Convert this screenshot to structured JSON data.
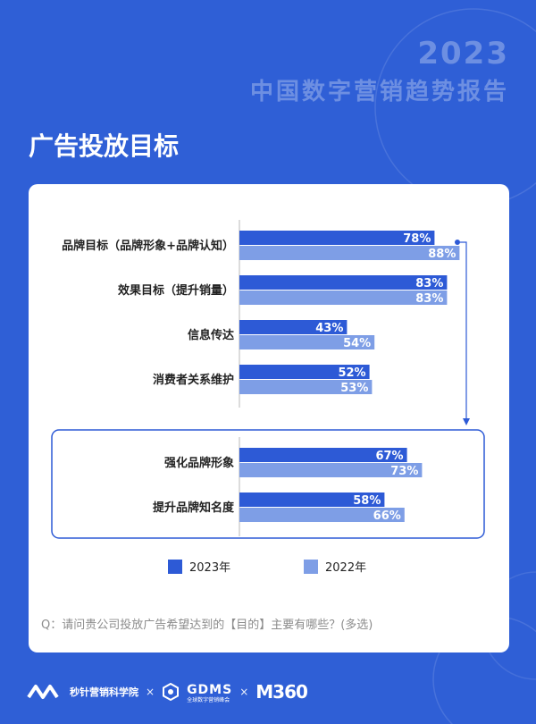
{
  "header": {
    "year": "2023",
    "report_title": "中国数字营销趋势报告",
    "page_title": "广告投放目标"
  },
  "chart_data": {
    "type": "bar",
    "orientation": "horizontal",
    "categories": [
      "品牌目标（品牌形象+品牌认知）",
      "效果目标（提升销量）",
      "信息传达",
      "消费者关系维护",
      "强化品牌形象",
      "提升品牌知名度"
    ],
    "series": [
      {
        "name": "2023年",
        "color": "#2d5ad6",
        "values": [
          78,
          83,
          43,
          52,
          67,
          58
        ]
      },
      {
        "name": "2022年",
        "color": "#7e9ee6",
        "values": [
          88,
          83,
          54,
          53,
          73,
          66
        ]
      }
    ],
    "value_suffix": "%",
    "xlim": [
      0,
      100
    ],
    "legend_position": "bottom",
    "highlight_group": [
      "强化品牌形象",
      "提升品牌知名度"
    ]
  },
  "question": "Q：请问贵公司投放广告希望达到的【目的】主要有哪些？(多选)",
  "footer": {
    "org1": "秒针营销科学院",
    "sep": "×",
    "org2": "GDMS",
    "org2_sub": "全球数字营销峰会",
    "org3": "M360"
  }
}
